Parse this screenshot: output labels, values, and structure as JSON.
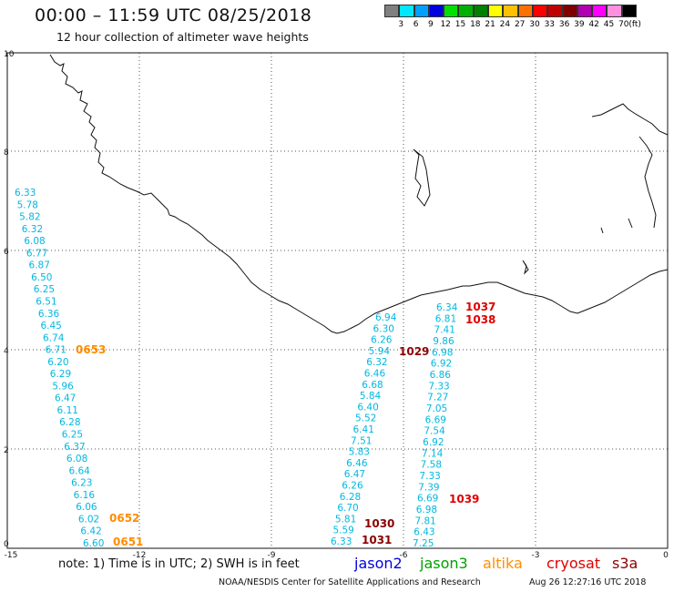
{
  "header": {
    "title": "00:00 – 11:59 UTC 08/25/2018",
    "subtitle": "12 hour collection of altimeter wave heights"
  },
  "legend": {
    "colors": [
      "#808080",
      "#00e8ff",
      "#00a0ff",
      "#0000e0",
      "#00e000",
      "#00b000",
      "#008000",
      "#ffff00",
      "#ffc000",
      "#ff7000",
      "#ff0000",
      "#c00000",
      "#800000",
      "#b000b0",
      "#ff00ff",
      "#ff90e0",
      "#000000"
    ],
    "labels": [
      "3",
      "6",
      "9",
      "12",
      "15",
      "18",
      "21",
      "24",
      "27",
      "30",
      "33",
      "36",
      "39",
      "42",
      "45",
      "70",
      "(ft)"
    ]
  },
  "axes": {
    "x_ticks": [
      "-15",
      "-12",
      "-9",
      "-6",
      "-3",
      "0"
    ],
    "y_ticks": [
      "10",
      "8",
      "6",
      "4",
      "2",
      "0"
    ]
  },
  "tracks": {
    "track1": {
      "color": "#00b8e0",
      "values": [
        "6.33",
        "5.78",
        "5.82",
        "6.32",
        "6.08",
        "6.77",
        "6.87",
        "6.50",
        "6.25",
        "6.51",
        "6.36",
        "6.45",
        "6.74",
        "6.71",
        "6.20",
        "6.29",
        "5.96",
        "6.47",
        "6.11",
        "6.28",
        "6.25",
        "6.37",
        "6.08",
        "6.64",
        "6.23",
        "6.16",
        "6.06",
        "6.02",
        "6.42",
        "6.60"
      ]
    },
    "track2": {
      "color": "#00b8e0",
      "values": [
        "6.94",
        "6.30",
        "6.26",
        "5.94",
        "6.32",
        "6.46",
        "6.68",
        "5.84",
        "6.40",
        "5.52",
        "6.41",
        "7.51",
        "5.83",
        "6.46",
        "6.47",
        "6.26",
        "6.28",
        "6.70",
        "5.81",
        "5.59",
        "6.33"
      ]
    },
    "track3": {
      "color": "#00b8e0",
      "values": [
        "6.34",
        "6.81",
        "7.41",
        "9.86",
        "6.98",
        "6.92",
        "6.86",
        "7.33",
        "7.27",
        "7.05",
        "6.69",
        "7.54",
        "6.92",
        "7.14",
        "7.58",
        "7.33",
        "7.39",
        "6.69",
        "6.98",
        "7.81",
        "6.43",
        "7.25"
      ]
    }
  },
  "timestamps": [
    {
      "label": "0653",
      "color": "#ff8c00"
    },
    {
      "label": "0652",
      "color": "#ff8c00"
    },
    {
      "label": "0651",
      "color": "#ff8c00"
    },
    {
      "label": "1030",
      "color": "#8b0000"
    },
    {
      "label": "1031",
      "color": "#8b0000"
    },
    {
      "label": "1029",
      "color": "#8b0000"
    },
    {
      "label": "1037",
      "color": "#e00000"
    },
    {
      "label": "1038",
      "color": "#e00000"
    },
    {
      "label": "1039",
      "color": "#e00000"
    }
  ],
  "footer": {
    "note": "note: 1) Time is in UTC; 2) SWH is in feet",
    "satellites": [
      {
        "name": "jason2",
        "color": "#0000e0"
      },
      {
        "name": "jason3",
        "color": "#00a000"
      },
      {
        "name": "altika",
        "color": "#ff9000"
      },
      {
        "name": "cryosat",
        "color": "#e00000"
      },
      {
        "name": "s3a",
        "color": "#8b0000"
      }
    ],
    "credit": "NOAA/NESDIS Center for Satellite Applications and Research",
    "generated": "Aug 26 12:27:16 UTC 2018"
  }
}
